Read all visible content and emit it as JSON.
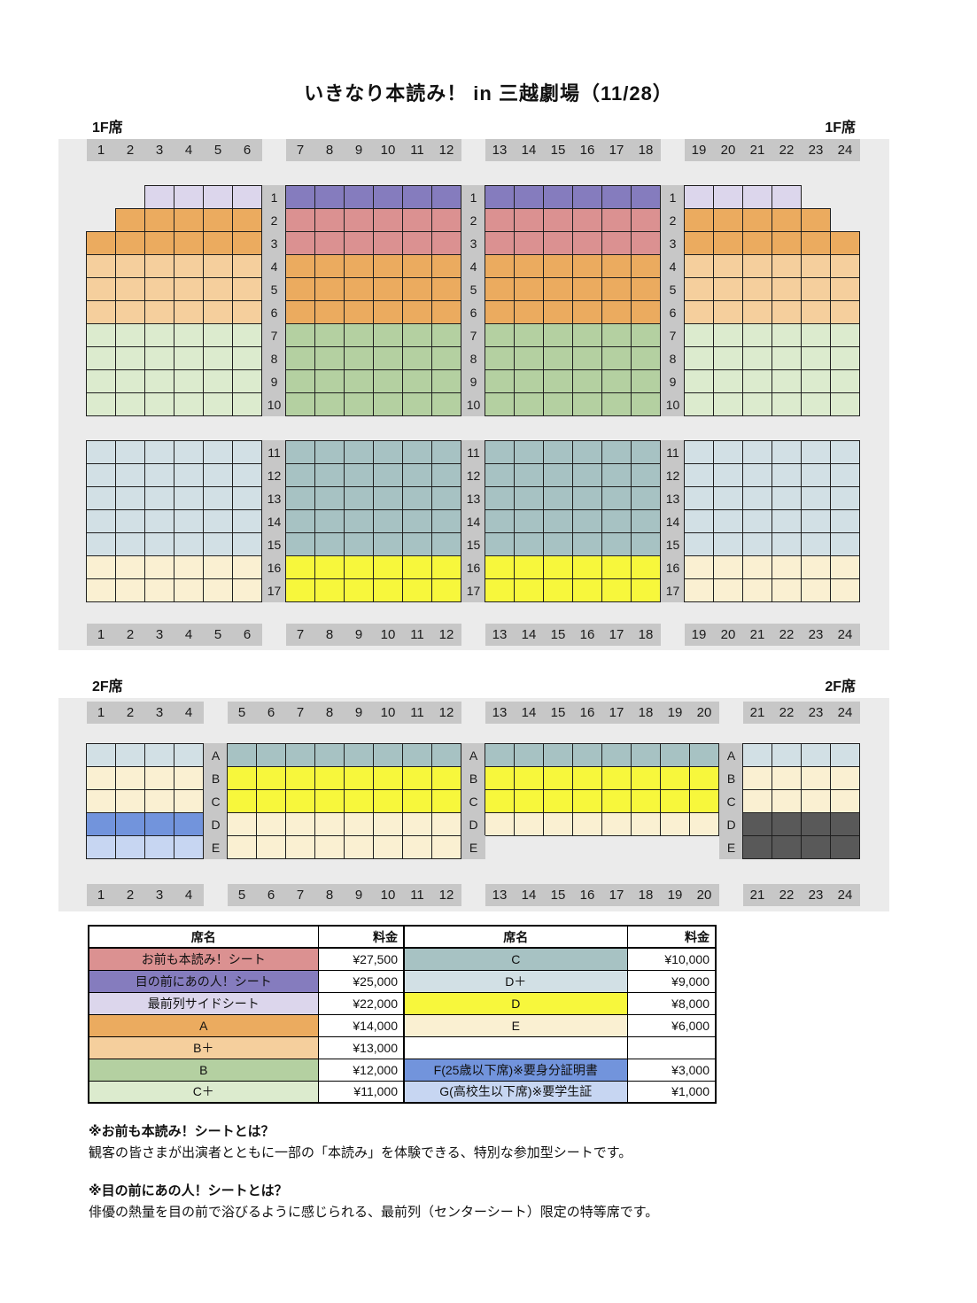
{
  "title": "いきなり本読み！ in 三越劇場（11/28）",
  "colors": {
    "OM": "#db9191",
    "MN": "#857cbe",
    "SZ": "#dcd6ec",
    "A": "#ebab5f",
    "BP": "#f5cf9d",
    "B": "#b4d0a1",
    "CP": "#dcebce",
    "C": "#a7c2c3",
    "DP": "#d2e0e5",
    "D": "#f7f73c",
    "E": "#faf0d2",
    "F": "#7294dc",
    "G": "#c7d6f2",
    "X": "#595959"
  },
  "floors": [
    {
      "label_left": "1F席",
      "label_right": "1F席",
      "gap_after": "10",
      "groups": [
        {
          "cols": [
            "1",
            "2",
            "3",
            "4",
            "5",
            "6"
          ]
        },
        {
          "cols": [
            "7",
            "8",
            "9",
            "10",
            "11",
            "12"
          ]
        },
        {
          "cols": [
            "13",
            "14",
            "15",
            "16",
            "17",
            "18"
          ]
        },
        {
          "cols": [
            "19",
            "20",
            "21",
            "22",
            "23",
            "24"
          ]
        }
      ],
      "rows": [
        {
          "label": "1",
          "sections": [
            {
              "cat": "SZ",
              "omit": [
                1,
                2
              ]
            },
            {
              "cat": "MN"
            },
            {
              "cat": "MN"
            },
            {
              "cat": "SZ",
              "omit": [
                5,
                6
              ]
            }
          ]
        },
        {
          "label": "2",
          "sections": [
            {
              "cat": "A",
              "omit": [
                1
              ]
            },
            {
              "cat": "OM"
            },
            {
              "cat": "OM"
            },
            {
              "cat": "A",
              "omit": [
                6
              ]
            }
          ]
        },
        {
          "label": "3",
          "sections": [
            {
              "cat": "A"
            },
            {
              "cat": "OM"
            },
            {
              "cat": "OM"
            },
            {
              "cat": "A"
            }
          ]
        },
        {
          "label": "4",
          "sections": [
            {
              "cat": "BP"
            },
            {
              "cat": "A"
            },
            {
              "cat": "A"
            },
            {
              "cat": "BP"
            }
          ]
        },
        {
          "label": "5",
          "sections": [
            {
              "cat": "BP"
            },
            {
              "cat": "A"
            },
            {
              "cat": "A"
            },
            {
              "cat": "BP"
            }
          ]
        },
        {
          "label": "6",
          "sections": [
            {
              "cat": "BP"
            },
            {
              "cat": "A"
            },
            {
              "cat": "A"
            },
            {
              "cat": "BP"
            }
          ]
        },
        {
          "label": "7",
          "sections": [
            {
              "cat": "CP"
            },
            {
              "cat": "B"
            },
            {
              "cat": "B"
            },
            {
              "cat": "CP"
            }
          ]
        },
        {
          "label": "8",
          "sections": [
            {
              "cat": "CP"
            },
            {
              "cat": "B"
            },
            {
              "cat": "B"
            },
            {
              "cat": "CP"
            }
          ]
        },
        {
          "label": "9",
          "sections": [
            {
              "cat": "CP"
            },
            {
              "cat": "B"
            },
            {
              "cat": "B"
            },
            {
              "cat": "CP"
            }
          ]
        },
        {
          "label": "10",
          "sections": [
            {
              "cat": "CP"
            },
            {
              "cat": "B"
            },
            {
              "cat": "B"
            },
            {
              "cat": "CP"
            }
          ]
        },
        {
          "label": "11",
          "sections": [
            {
              "cat": "DP"
            },
            {
              "cat": "C"
            },
            {
              "cat": "C"
            },
            {
              "cat": "DP"
            }
          ]
        },
        {
          "label": "12",
          "sections": [
            {
              "cat": "DP"
            },
            {
              "cat": "C"
            },
            {
              "cat": "C"
            },
            {
              "cat": "DP"
            }
          ]
        },
        {
          "label": "13",
          "sections": [
            {
              "cat": "DP"
            },
            {
              "cat": "C"
            },
            {
              "cat": "C"
            },
            {
              "cat": "DP"
            }
          ]
        },
        {
          "label": "14",
          "sections": [
            {
              "cat": "DP"
            },
            {
              "cat": "C"
            },
            {
              "cat": "C"
            },
            {
              "cat": "DP"
            }
          ]
        },
        {
          "label": "15",
          "sections": [
            {
              "cat": "DP"
            },
            {
              "cat": "C"
            },
            {
              "cat": "C"
            },
            {
              "cat": "DP"
            }
          ]
        },
        {
          "label": "16",
          "sections": [
            {
              "cat": "E"
            },
            {
              "cat": "D"
            },
            {
              "cat": "D"
            },
            {
              "cat": "E"
            }
          ]
        },
        {
          "label": "17",
          "sections": [
            {
              "cat": "E"
            },
            {
              "cat": "D"
            },
            {
              "cat": "D"
            },
            {
              "cat": "E"
            }
          ]
        }
      ]
    },
    {
      "label_left": "2F席",
      "label_right": "2F席",
      "gap_after": "",
      "groups": [
        {
          "cols": [
            "1",
            "2",
            "3",
            "4"
          ]
        },
        {
          "cols": [
            "5",
            "6",
            "7",
            "8",
            "9",
            "10",
            "11",
            "12"
          ]
        },
        {
          "cols": [
            "13",
            "14",
            "15",
            "16",
            "17",
            "18",
            "19",
            "20"
          ]
        },
        {
          "cols": [
            "21",
            "22",
            "23",
            "24"
          ]
        }
      ],
      "rows": [
        {
          "label": "A",
          "sections": [
            {
              "cat": "DP"
            },
            {
              "cat": "C"
            },
            {
              "cat": "C"
            },
            {
              "cat": "DP"
            }
          ]
        },
        {
          "label": "B",
          "sections": [
            {
              "cat": "E"
            },
            {
              "cat": "D"
            },
            {
              "cat": "D"
            },
            {
              "cat": "E"
            }
          ]
        },
        {
          "label": "C",
          "sections": [
            {
              "cat": "E"
            },
            {
              "cat": "D"
            },
            {
              "cat": "D"
            },
            {
              "cat": "E"
            }
          ]
        },
        {
          "label": "D",
          "sections": [
            {
              "cat": "F"
            },
            {
              "cat": "E"
            },
            {
              "cat": "E"
            },
            {
              "cat": "X"
            }
          ]
        },
        {
          "label": "E",
          "sections": [
            {
              "cat": "G"
            },
            {
              "cat": "E"
            },
            {
              "cat": "none"
            },
            {
              "cat": "X"
            }
          ]
        }
      ]
    }
  ],
  "price_table": {
    "header_seat": "席名",
    "header_price": "料金",
    "left": [
      {
        "name": "お前も本読み！シート",
        "price": "¥27,500",
        "cat": "OM"
      },
      {
        "name": "目の前にあの人！シート",
        "price": "¥25,000",
        "cat": "MN"
      },
      {
        "name": "最前列サイドシート",
        "price": "¥22,000",
        "cat": "SZ"
      },
      {
        "name": "A",
        "price": "¥14,000",
        "cat": "A"
      },
      {
        "name": "B＋",
        "price": "¥13,000",
        "cat": "BP"
      },
      {
        "name": "B",
        "price": "¥12,000",
        "cat": "B"
      },
      {
        "name": "C＋",
        "price": "¥11,000",
        "cat": "CP"
      }
    ],
    "right": [
      {
        "name": "C",
        "price": "¥10,000",
        "cat": "C"
      },
      {
        "name": "D＋",
        "price": "¥9,000",
        "cat": "DP"
      },
      {
        "name": "D",
        "price": "¥8,000",
        "cat": "D"
      },
      {
        "name": "E",
        "price": "¥6,000",
        "cat": "E"
      },
      {
        "name": "",
        "price": "",
        "cat": ""
      },
      {
        "name": "F(25歳以下席)※要身分証明書",
        "price": "¥3,000",
        "cat": "F"
      },
      {
        "name": "G(高校生以下席)※要学生証",
        "price": "¥1,000",
        "cat": "G"
      }
    ]
  },
  "notes": [
    {
      "heading": "※お前も本読み！シートとは？",
      "body": "観客の皆さまが出演者とともに一部の「本読み」を体験できる、特別な参加型シートです。"
    },
    {
      "heading": "※目の前にあの人！シートとは？",
      "body": "俳優の熱量を目の前で浴びるように感じられる、最前列（センターシート）限定の特等席です。"
    }
  ]
}
